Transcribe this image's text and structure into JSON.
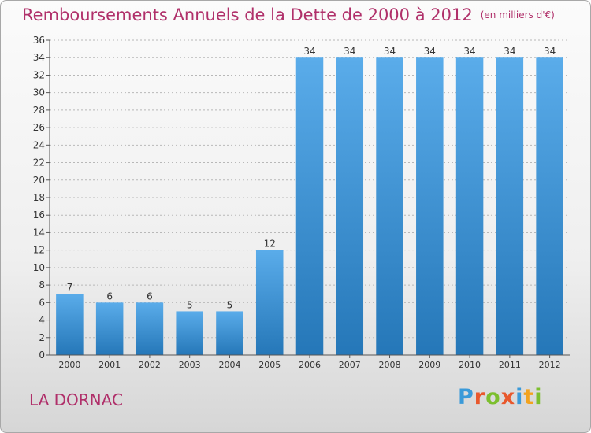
{
  "title": "Remboursements Annuels de la Dette de 2000 à 2012",
  "unit": "(en milliers d'€)",
  "commune": "LA DORNAC",
  "logo": {
    "letters": [
      "P",
      "r",
      "o",
      "x",
      "i",
      "t",
      "i"
    ],
    "colors": [
      "#3a9ad9",
      "#e8582c",
      "#7cbf2e",
      "#e8582c",
      "#3a9ad9",
      "#f2a31f",
      "#7cbf2e"
    ]
  },
  "colors": {
    "bar_light": "#5aacea",
    "bar_dark": "#2577b8",
    "title": "#b0306a",
    "axis_label": "#b0306a",
    "tick_text": "#333333",
    "grid": "#b8b8b8"
  },
  "chart_data": {
    "type": "bar",
    "title": "Remboursements Annuels de la Dette de 2000 à 2012",
    "unit": "(en milliers d'€)",
    "categories": [
      "2000",
      "2001",
      "2002",
      "2003",
      "2004",
      "2005",
      "2006",
      "2007",
      "2008",
      "2009",
      "2010",
      "2011",
      "2012"
    ],
    "values": [
      7,
      6,
      6,
      5,
      5,
      12,
      34,
      34,
      34,
      34,
      34,
      34,
      34
    ],
    "ylim": [
      0,
      36
    ],
    "yticks": [
      0,
      2,
      4,
      6,
      8,
      10,
      12,
      14,
      16,
      18,
      20,
      22,
      24,
      26,
      28,
      30,
      32,
      34,
      36
    ],
    "grid": "horizontal dashed",
    "data_labels": true,
    "legend": "none"
  }
}
